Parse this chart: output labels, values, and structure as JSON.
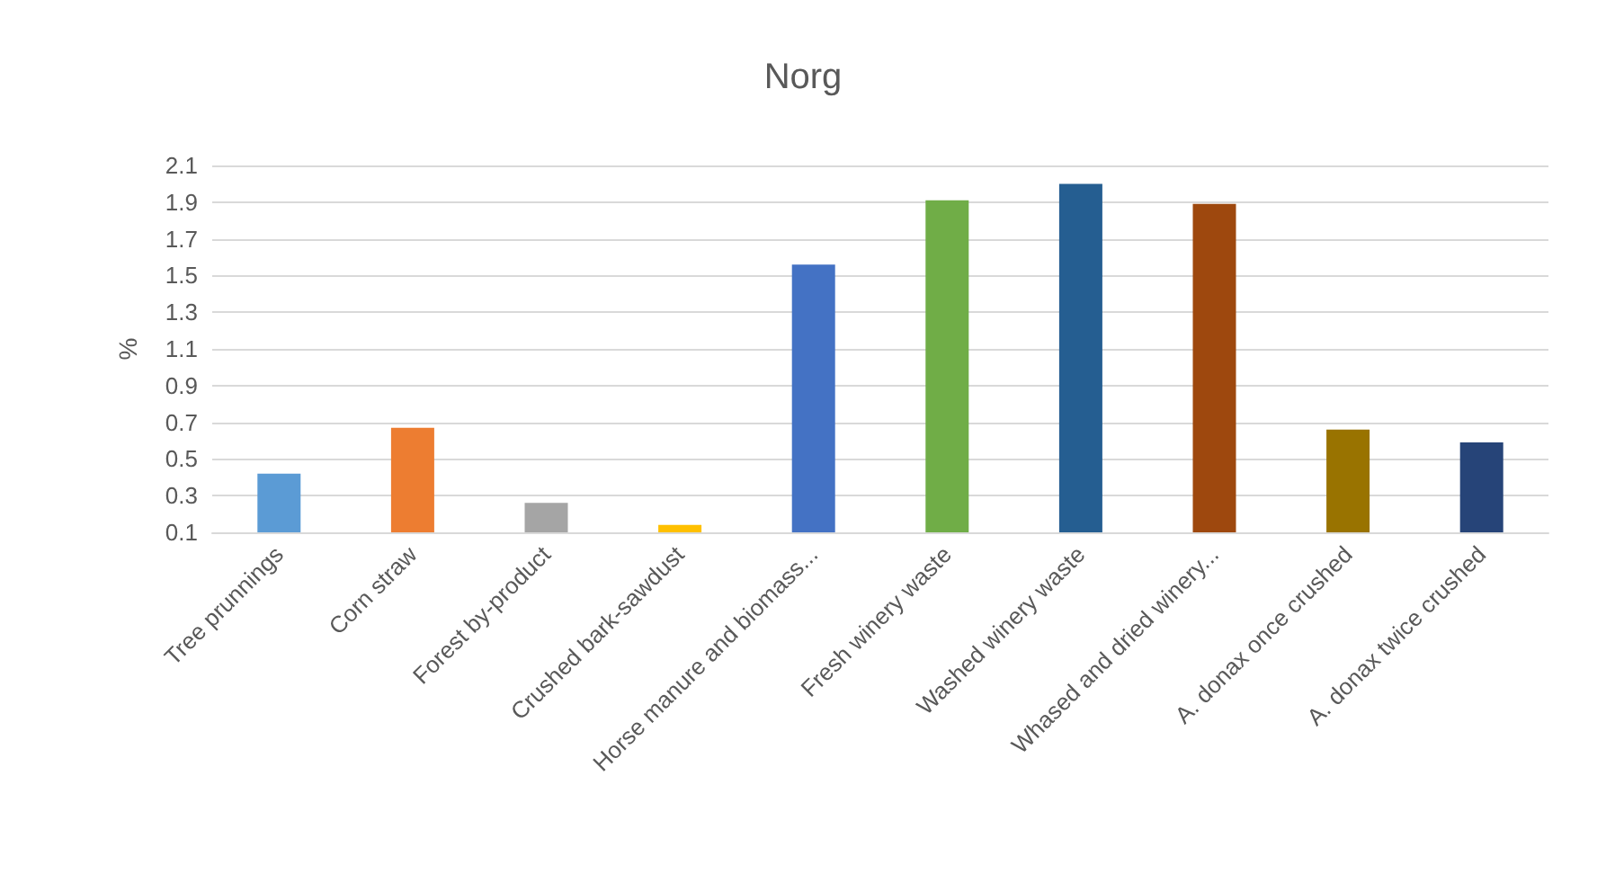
{
  "chart_data": {
    "type": "bar",
    "title": "Norg",
    "ylabel": "%",
    "categories": [
      "Tree prunnings",
      "Corn straw",
      "Forest by-product",
      "Crushed bark-sawdust",
      "Horse manure and biomass...",
      "Fresh winery waste",
      "Washed winery waste",
      "Whased and dried winery...",
      "A. donax once crushed",
      "A. donax twice crushed"
    ],
    "values": [
      0.42,
      0.67,
      0.26,
      0.14,
      1.56,
      1.91,
      2.0,
      1.89,
      0.66,
      0.59
    ],
    "colors": [
      "#5b9bd5",
      "#ed7d31",
      "#a5a5a5",
      "#ffc000",
      "#4472c4",
      "#70ad47",
      "#255e91",
      "#9e480e",
      "#997300",
      "#264478"
    ],
    "ylim": [
      0.1,
      2.1
    ],
    "yticks": [
      0.1,
      0.3,
      0.5,
      0.7,
      0.9,
      1.1,
      1.3,
      1.5,
      1.7,
      1.9,
      2.1
    ],
    "grid": "y"
  }
}
